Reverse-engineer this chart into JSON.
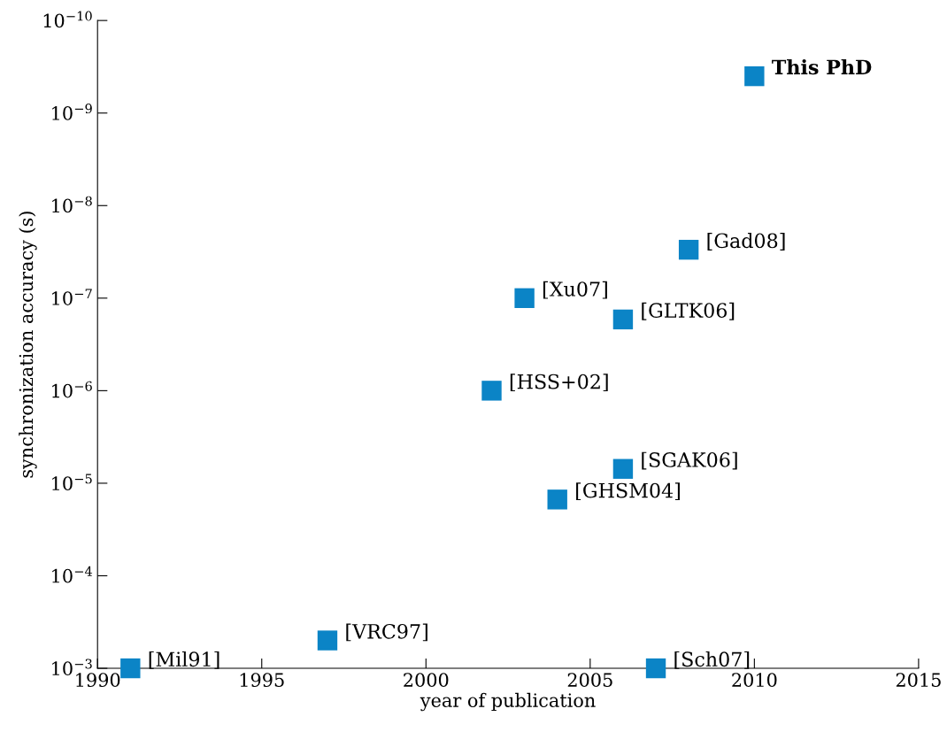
{
  "chart_data": {
    "type": "scatter",
    "xlabel": "year of publication",
    "ylabel": "synchronization accuracy (s)",
    "x": [
      1991,
      1997,
      2002,
      2003,
      2004,
      2006,
      2006,
      2007,
      2008,
      2010
    ],
    "series": [
      {
        "color": "#0b84c6",
        "values": [
          0.001,
          0.0005,
          1e-06,
          1e-07,
          1.5e-05,
          7e-06,
          1.7e-07,
          0.001,
          3e-08,
          4e-10
        ]
      }
    ],
    "marker": "square",
    "log": "y",
    "grid": false,
    "legend": false,
    "xlim": [
      1990,
      2015
    ],
    "xticks": [
      1990,
      1995,
      2000,
      2005,
      2010,
      2015
    ],
    "ylim": [
      0.001,
      1e-10
    ],
    "yticks": [
      {
        "value": 0.001,
        "label": "10$^{−3}$"
      },
      {
        "value": 0.0001,
        "label": "10$^{−4}$"
      },
      {
        "value": 1e-05,
        "label": "10$^{−5}$"
      },
      {
        "value": 1e-06,
        "label": "10$^{−6}$"
      },
      {
        "value": 1e-07,
        "label": "10$^{−7}$"
      },
      {
        "value": 1e-08,
        "label": "10$^{−8}$"
      },
      {
        "value": 1e-09,
        "label": "10$^{−9}$"
      },
      {
        "value": 1e-10,
        "label": "10$^{−10}$"
      }
    ],
    "annotations": [
      {
        "text": "[Mil91]",
        "x": 1991,
        "y": 0.001
      },
      {
        "text": "[VRC97]",
        "x": 1997,
        "y": 0.0005
      },
      {
        "text": "[HSS+02]",
        "x": 2002,
        "y": 1e-06
      },
      {
        "text": "[Xu07]",
        "x": 2003,
        "y": 1e-07
      },
      {
        "text": "[GHSM04]",
        "x": 2004,
        "y": 1.5e-05
      },
      {
        "text": "[SGAK06]",
        "x": 2006,
        "y": 7e-06
      },
      {
        "text": "[GLTK06]",
        "x": 2006,
        "y": 1.7e-07
      },
      {
        "text": "[Sch07]",
        "x": 2007,
        "y": 0.001
      },
      {
        "text": "[Gad08]",
        "x": 2008,
        "y": 3e-08
      },
      {
        "text": "This PhD",
        "x": 2010,
        "y": 4e-10
      }
    ]
  }
}
